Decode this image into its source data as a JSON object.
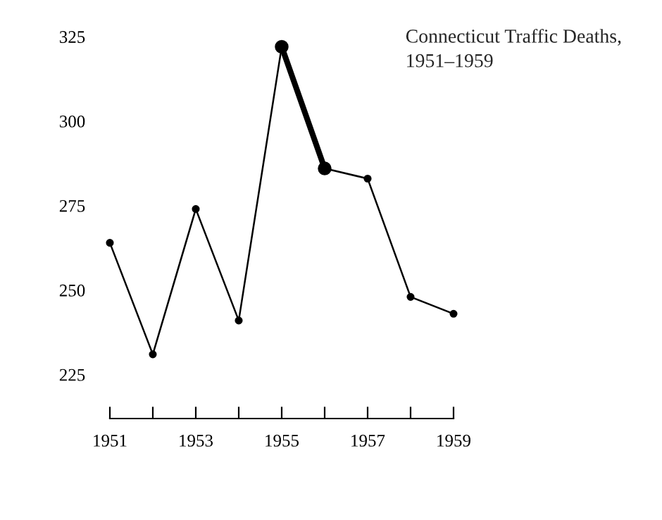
{
  "chart_data": {
    "type": "line",
    "title": "Connecticut Traffic Deaths,\n1951–1959",
    "x": [
      1951,
      1952,
      1953,
      1954,
      1955,
      1956,
      1957,
      1958,
      1959
    ],
    "series": [
      {
        "color": "#000000",
        "values": [
          264,
          231,
          274,
          241,
          322,
          286,
          283,
          248,
          243
        ]
      },
      {
        "color": "#000000",
        "values": [
          null,
          null,
          null,
          null,
          322,
          286,
          null,
          null,
          null
        ]
      }
    ],
    "xlim": [
      1951,
      1959
    ],
    "ylim": [
      212,
      325
    ],
    "xticks": [
      1951,
      {
        "value": 1952,
        "label": null
      },
      1953,
      {
        "value": 1954,
        "label": null
      },
      1955,
      {
        "value": 1956,
        "label": null
      },
      1957,
      {
        "value": 1958,
        "label": null
      },
      1959
    ],
    "yticks": [
      225,
      250,
      275,
      300,
      325
    ],
    "grid": false,
    "legend": false,
    "marker": "circle",
    "line_style": "solid"
  }
}
